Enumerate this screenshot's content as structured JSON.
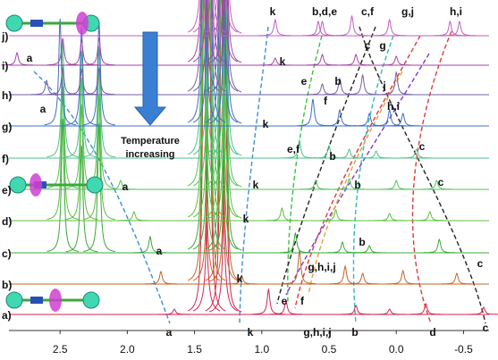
{
  "chart_data": {
    "type": "spectra",
    "xlim": [
      2.88,
      -0.69
    ],
    "xticks": [
      2.5,
      {
        "value": 2,
        "label": "2.0"
      },
      1.5,
      {
        "value": 1,
        "label": "1.0"
      },
      0.5,
      {
        "value": 0,
        "label": "0.0"
      },
      -0.5
    ],
    "annotation": [
      "Temperature",
      "increasing"
    ],
    "peak_labels": [
      "k",
      "b,d,e",
      "c,f",
      "g,j",
      "h,i",
      "a",
      "k",
      "c",
      "g",
      "e",
      "b",
      "j",
      "a",
      "k",
      "f",
      "h,i",
      "e,f",
      "b",
      "c",
      "a",
      "k",
      "b",
      "c",
      "k",
      "a",
      "b",
      "k",
      "g,h,i,j",
      "c",
      "e",
      "f",
      "a",
      "k",
      "g,h,i,j",
      "b",
      "d",
      "c"
    ],
    "series": [
      {
        "name": "a)",
        "color": "#d4254f",
        "x": [
          1.65,
          1.43,
          1.39,
          1.3,
          1.27,
          0.95,
          0.82,
          0.3,
          0.05,
          -0.22,
          -0.65
        ],
        "values": [
          6,
          400,
          400,
          400,
          300,
          28,
          15,
          10,
          6,
          12,
          8
        ]
      },
      {
        "name": "b)",
        "color": "#c0652a",
        "x": [
          1.75,
          1.43,
          1.39,
          1.3,
          1.27,
          1.15,
          0.72,
          0.38,
          0.25,
          -0.05,
          -0.45
        ],
        "values": [
          14,
          400,
          400,
          400,
          300,
          10,
          38,
          20,
          12,
          15,
          12
        ]
      },
      {
        "name": "c)",
        "color": "#3aa83a",
        "x": [
          2.48,
          2.34,
          2.21,
          1.83,
          1.43,
          1.39,
          1.3,
          1.27,
          0.75,
          0.4,
          0.2,
          -0.32
        ],
        "values": [
          150,
          120,
          145,
          18,
          400,
          400,
          400,
          300,
          22,
          12,
          8,
          15
        ]
      },
      {
        "name": "d)",
        "color": "#5cbf3c",
        "x": [
          2.48,
          2.34,
          2.21,
          1.95,
          1.43,
          1.39,
          1.3,
          1.27,
          0.85,
          0.45,
          0.05,
          -0.25
        ],
        "values": [
          150,
          130,
          140,
          10,
          400,
          400,
          400,
          300,
          14,
          12,
          8,
          10
        ]
      },
      {
        "name": "e)",
        "color": "#55c25a",
        "x": [
          2.48,
          2.34,
          2.21,
          2.05,
          1.43,
          1.39,
          1.3,
          1.27,
          0.6,
          0.35,
          0.0,
          -0.3
        ],
        "values": [
          140,
          125,
          135,
          10,
          400,
          400,
          400,
          300,
          10,
          12,
          10,
          10
        ]
      },
      {
        "name": "f)",
        "color": "#4cc08c",
        "x": [
          2.48,
          2.34,
          2.21,
          1.43,
          1.39,
          1.3,
          1.27,
          0.72,
          0.5,
          0.35,
          0.15,
          -0.15
        ],
        "values": [
          130,
          120,
          125,
          400,
          400,
          400,
          300,
          20,
          14,
          10,
          8,
          10
        ]
      },
      {
        "name": "g)",
        "color": "#3f6fc2",
        "x": [
          2.5,
          2.34,
          2.21,
          1.43,
          1.39,
          1.3,
          1.27,
          0.62,
          0.42,
          0.2,
          0.05,
          -0.05
        ],
        "values": [
          120,
          110,
          115,
          400,
          400,
          400,
          300,
          30,
          18,
          14,
          18,
          14
        ]
      },
      {
        "name": "h)",
        "color": "#7560a3",
        "x": [
          2.6,
          2.48,
          2.34,
          2.21,
          1.43,
          1.39,
          1.3,
          1.27,
          0.55,
          0.42,
          0.25,
          0.0
        ],
        "values": [
          16,
          30,
          28,
          30,
          400,
          400,
          400,
          300,
          12,
          18,
          22,
          25
        ]
      },
      {
        "name": "i)",
        "color": "#a645a6",
        "x": [
          2.82,
          2.48,
          2.34,
          2.21,
          1.43,
          1.39,
          1.3,
          1.27,
          0.9,
          0.55,
          0.3,
          0.0
        ],
        "values": [
          14,
          30,
          28,
          30,
          400,
          400,
          400,
          300,
          8,
          12,
          12,
          10
        ]
      },
      {
        "name": "j)",
        "color": "#c25fc2",
        "x": [
          1.43,
          1.39,
          1.3,
          1.27,
          0.9,
          0.58,
          0.55,
          0.33,
          0.05,
          -0.4,
          -0.47
        ],
        "values": [
          400,
          400,
          400,
          300,
          18,
          16,
          16,
          22,
          18,
          16,
          16
        ]
      }
    ]
  }
}
